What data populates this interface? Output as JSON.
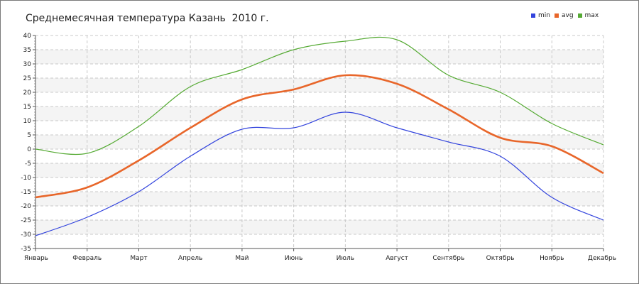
{
  "chart_data": {
    "type": "line",
    "title": "Среднемесячная температура Казань  2010 г.",
    "categories": [
      "Январь",
      "Февраль",
      "Март",
      "Апрель",
      "Май",
      "Июнь",
      "Июль",
      "Август",
      "Сентябрь",
      "Октябрь",
      "Ноябрь",
      "Декабрь"
    ],
    "series": [
      {
        "name": "min",
        "color": "#3344dd",
        "values": [
          -30.5,
          -24,
          -15,
          -2.5,
          7,
          7.5,
          13,
          7.5,
          2.5,
          -2.5,
          -17,
          -25
        ]
      },
      {
        "name": "avg",
        "color": "#e8662a",
        "values": [
          -17,
          -13.5,
          -4,
          7.5,
          17.5,
          21,
          26,
          23,
          14,
          4,
          1,
          -8.5
        ]
      },
      {
        "name": "max",
        "color": "#55aa33",
        "values": [
          0,
          -1.5,
          8,
          22,
          28,
          35,
          38,
          38.5,
          26,
          20,
          9,
          1.5
        ]
      }
    ],
    "ylim": [
      -35,
      40
    ],
    "yticks": [
      -35,
      -30,
      -25,
      -20,
      -15,
      -10,
      -5,
      0,
      5,
      10,
      15,
      20,
      25,
      30,
      35,
      40
    ],
    "grid": true,
    "legend_position": "top-right",
    "xlabel": "",
    "ylabel": ""
  }
}
